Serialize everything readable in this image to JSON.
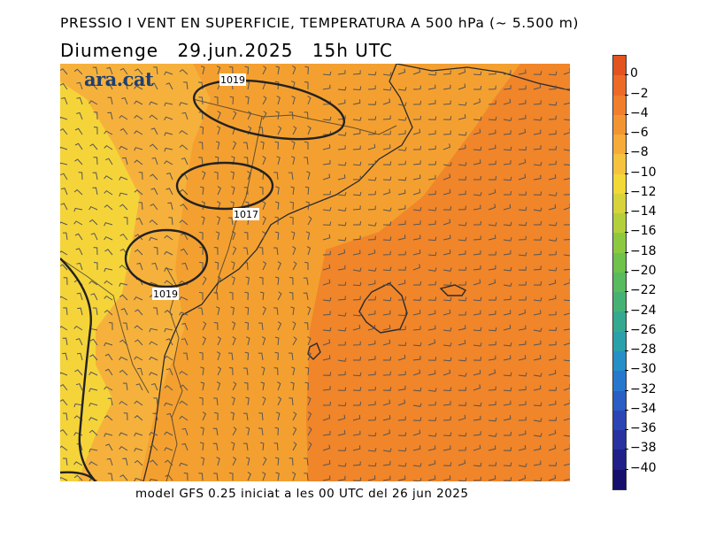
{
  "header": {
    "title": "PRESSIO I VENT EN SUPERFICIE, TEMPERATURA A 500 hPa (~ 5.500 m)",
    "day": "Diumenge",
    "date": "29.jun.2025",
    "time": "15h UTC"
  },
  "logo": {
    "text": "ara.cat"
  },
  "footer": {
    "model_text": "model GFS 0.25 iniciat a les 00 UTC del 26 jun 2025"
  },
  "map": {
    "isobar_labels": [
      "1019",
      "1017",
      "1019"
    ],
    "colors": {
      "yellow": "#f5d43a",
      "light_orange": "#f6b13c",
      "orange": "#f4a030",
      "dark_orange": "#f0852a",
      "coast": "#2a2a2a",
      "isobar": "#222222",
      "barb": "#555555"
    }
  },
  "colorbar": {
    "labels": [
      "0",
      "-2",
      "-4",
      "-6",
      "-8",
      "-10",
      "-12",
      "-14",
      "-16",
      "-18",
      "-20",
      "-22",
      "-24",
      "-26",
      "-28",
      "-30",
      "-32",
      "-34",
      "-36",
      "-38",
      "-40"
    ],
    "display_labels": [
      "0",
      "−2",
      "−4",
      "−6",
      "−8",
      "−10",
      "−12",
      "−14",
      "−16",
      "−18",
      "−20",
      "−22",
      "−24",
      "−26",
      "−28",
      "−30",
      "−32",
      "−34",
      "−36",
      "−38",
      "−40"
    ],
    "colors": [
      "#e2531f",
      "#ec6a26",
      "#f07e2c",
      "#f39433",
      "#f6ab3a",
      "#f5c33d",
      "#f2d838",
      "#d6d43a",
      "#b3cf3c",
      "#8dc93f",
      "#6fc24a",
      "#58bb5e",
      "#45b275",
      "#35a98f",
      "#2aa0ab",
      "#2590c6",
      "#2777cf",
      "#2a5dc5",
      "#2b45b4",
      "#28319f",
      "#1f2188",
      "#160f6c"
    ]
  }
}
